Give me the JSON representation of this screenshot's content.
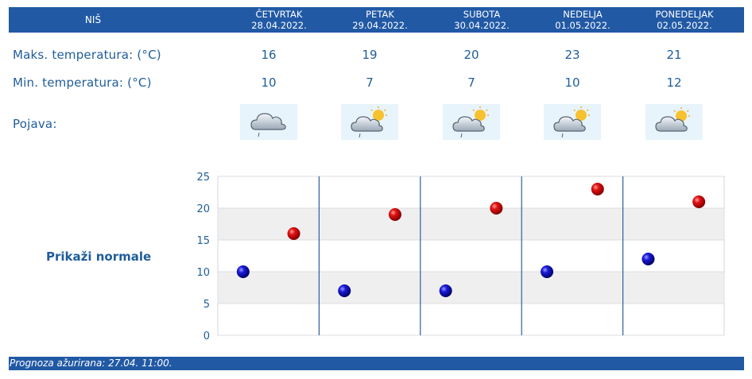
{
  "header": {
    "city": "NIŠ",
    "days": [
      {
        "name": "ČETVRTAK",
        "date": "28.04.2022."
      },
      {
        "name": "PETAK",
        "date": "29.04.2022."
      },
      {
        "name": "SUBOTA",
        "date": "30.04.2022."
      },
      {
        "name": "NEDELJA",
        "date": "01.05.2022."
      },
      {
        "name": "PONEDELJAK",
        "date": "02.05.2022."
      }
    ]
  },
  "rows": {
    "max_label": "Maks. temperatura: (°C)",
    "min_label": "Min. temperatura: (°C)",
    "phenomenon_label": "Pojava:",
    "max_values": [
      "16",
      "19",
      "20",
      "23",
      "21"
    ],
    "min_values": [
      "10",
      "7",
      "7",
      "10",
      "12"
    ],
    "icons": [
      "cloud-rain-icon",
      "partly-cloudy-rain-icon",
      "partly-cloudy-rain-icon",
      "partly-cloudy-rain-icon",
      "partly-cloudy-icon"
    ]
  },
  "normals_link": "Prikaži normale",
  "chart_data": {
    "type": "scatter",
    "ylim": [
      0,
      25
    ],
    "yticks": [
      "0",
      "5",
      "10",
      "15",
      "20",
      "25"
    ],
    "grid": true,
    "series": [
      {
        "values": [
          10,
          7,
          7,
          10,
          12
        ],
        "color": "#0a0ab0"
      },
      {
        "values": [
          16,
          19,
          20,
          23,
          21
        ],
        "color": "#c00000"
      }
    ]
  },
  "footer": {
    "text": "Prognoza ažurirana:  27.04. 11:00."
  },
  "colors": {
    "header_bg": "#2159a5",
    "text": "#1f5d9a",
    "min_dot": "#0a0ab0",
    "max_dot": "#c00000"
  }
}
